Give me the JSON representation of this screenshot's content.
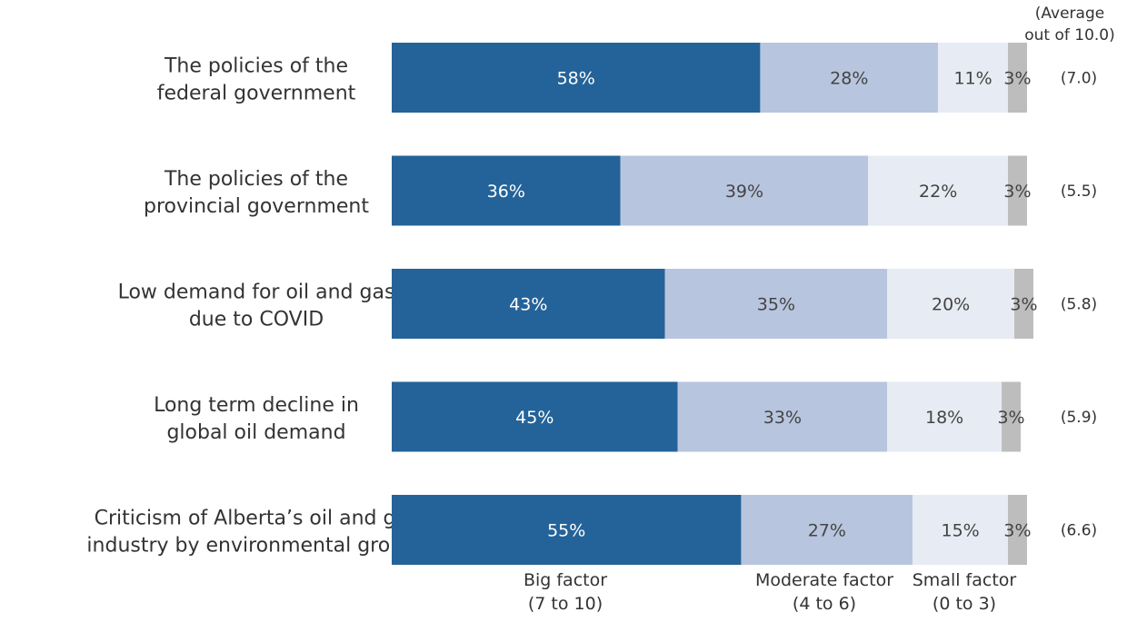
{
  "chart_data": {
    "type": "bar",
    "orientation": "horizontal",
    "stacked": true,
    "categories": [
      [
        "The policies of the",
        "federal government"
      ],
      [
        "The policies of the",
        "provincial government"
      ],
      [
        "Low demand for oil and gas",
        "due to COVID"
      ],
      [
        "Long term decline in",
        "global oil demand"
      ],
      [
        "Criticism of Alberta’s oil and gas",
        "industry by environmental groups"
      ]
    ],
    "series": [
      {
        "name": "Big factor (7 to 10)",
        "legend_lines": [
          "Big factor",
          "(7 to 10)"
        ],
        "color": "#246399",
        "text_color": "#ffffff",
        "values": [
          58,
          36,
          43,
          45,
          55
        ]
      },
      {
        "name": "Moderate factor (4 to 6)",
        "legend_lines": [
          "Moderate factor",
          "(4 to 6)"
        ],
        "color": "#b8c5de",
        "text_color": "#444444",
        "values": [
          28,
          39,
          35,
          33,
          27
        ]
      },
      {
        "name": "Small factor (0 to 3)",
        "legend_lines": [
          "Small factor",
          "(0 to 3)"
        ],
        "color": "#e7ebf3",
        "text_color": "#444444",
        "values": [
          11,
          22,
          20,
          18,
          15
        ]
      },
      {
        "name": "",
        "legend_lines": [],
        "color": "#bdbdbd",
        "text_color": "#444444",
        "values": [
          3,
          3,
          3,
          3,
          3
        ]
      }
    ],
    "value_suffix": "%",
    "averages": [
      "(7.0)",
      "(5.5)",
      "(5.8)",
      "(5.9)",
      "(6.6)"
    ],
    "average_header": [
      "(Average",
      "out of 10.0)"
    ],
    "xlim": [
      0,
      100
    ],
    "grid": false,
    "legend_position": "bottom"
  }
}
